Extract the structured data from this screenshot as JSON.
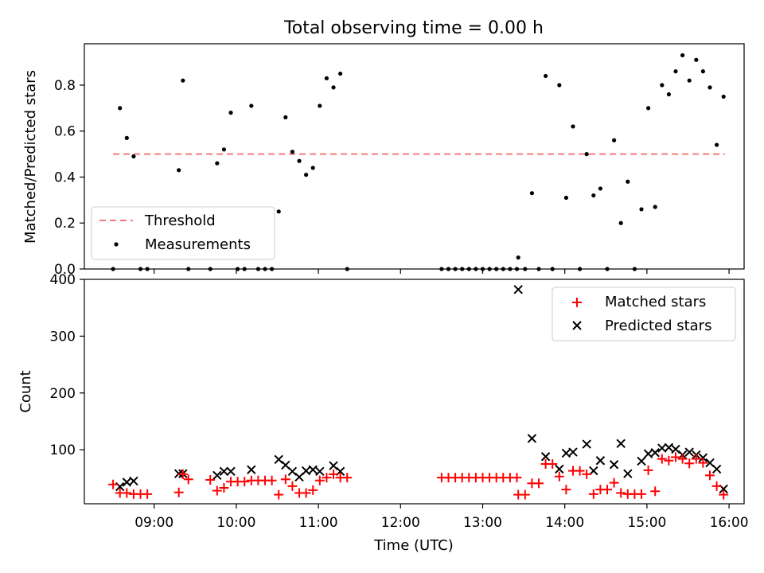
{
  "figure": {
    "title": "Total observing time = 0.00 h"
  },
  "chart_data": [
    {
      "type": "scatter",
      "ylabel": "Matched/Predicted stars",
      "ylim": [
        0,
        0.98
      ],
      "yticks": [
        0.0,
        0.2,
        0.4,
        0.6,
        0.8
      ],
      "ytick_labels": [
        "0.0",
        "0.2",
        "0.4",
        "0.6",
        "0.8"
      ],
      "legend": "lower-left",
      "threshold": {
        "name": "Threshold",
        "value": 0.5,
        "x_start": "08:30",
        "x_end": "15:57",
        "color": "#f47a7a"
      },
      "series": [
        {
          "name": "Measurements",
          "color": "#000000",
          "points": [
            [
              "08:30",
              0.0
            ],
            [
              "08:35",
              0.7
            ],
            [
              "08:40",
              0.57
            ],
            [
              "08:45",
              0.49
            ],
            [
              "08:50",
              0.0
            ],
            [
              "08:55",
              0.0
            ],
            [
              "09:18",
              0.43
            ],
            [
              "09:21",
              0.82
            ],
            [
              "09:25",
              0.0
            ],
            [
              "09:41",
              0.0
            ],
            [
              "09:46",
              0.46
            ],
            [
              "09:51",
              0.52
            ],
            [
              "09:56",
              0.68
            ],
            [
              "10:01",
              0.0
            ],
            [
              "10:06",
              0.0
            ],
            [
              "10:11",
              0.71
            ],
            [
              "10:16",
              0.0
            ],
            [
              "10:21",
              0.0
            ],
            [
              "10:26",
              0.0
            ],
            [
              "10:31",
              0.25
            ],
            [
              "10:36",
              0.66
            ],
            [
              "10:41",
              0.51
            ],
            [
              "10:46",
              0.47
            ],
            [
              "10:51",
              0.41
            ],
            [
              "10:56",
              0.44
            ],
            [
              "11:01",
              0.71
            ],
            [
              "11:06",
              0.83
            ],
            [
              "11:11",
              0.79
            ],
            [
              "11:16",
              0.85
            ],
            [
              "11:21",
              0.0
            ],
            [
              "12:30",
              0.0
            ],
            [
              "12:35",
              0.0
            ],
            [
              "12:40",
              0.0
            ],
            [
              "12:45",
              0.0
            ],
            [
              "12:50",
              0.0
            ],
            [
              "12:55",
              0.0
            ],
            [
              "13:00",
              0.0
            ],
            [
              "13:05",
              0.0
            ],
            [
              "13:10",
              0.0
            ],
            [
              "13:15",
              0.0
            ],
            [
              "13:20",
              0.0
            ],
            [
              "13:25",
              0.0
            ],
            [
              "13:26",
              0.05
            ],
            [
              "13:31",
              0.0
            ],
            [
              "13:36",
              0.33
            ],
            [
              "13:41",
              0.0
            ],
            [
              "13:46",
              0.84
            ],
            [
              "13:51",
              0.0
            ],
            [
              "13:56",
              0.8
            ],
            [
              "14:01",
              0.31
            ],
            [
              "14:06",
              0.62
            ],
            [
              "14:11",
              0.0
            ],
            [
              "14:16",
              0.5
            ],
            [
              "14:21",
              0.32
            ],
            [
              "14:26",
              0.35
            ],
            [
              "14:31",
              0.0
            ],
            [
              "14:36",
              0.56
            ],
            [
              "14:41",
              0.2
            ],
            [
              "14:46",
              0.38
            ],
            [
              "14:51",
              0.0
            ],
            [
              "14:56",
              0.26
            ],
            [
              "15:01",
              0.7
            ],
            [
              "15:06",
              0.27
            ],
            [
              "15:11",
              0.8
            ],
            [
              "15:16",
              0.76
            ],
            [
              "15:21",
              0.86
            ],
            [
              "15:26",
              0.93
            ],
            [
              "15:31",
              0.82
            ],
            [
              "15:36",
              0.91
            ],
            [
              "15:41",
              0.86
            ],
            [
              "15:46",
              0.79
            ],
            [
              "15:51",
              0.54
            ],
            [
              "15:56",
              0.75
            ]
          ]
        }
      ]
    },
    {
      "type": "scatter",
      "xlabel": "Time (UTC)",
      "ylabel": "Count",
      "ylim": [
        5,
        400
      ],
      "yticks": [
        100,
        200,
        300,
        400
      ],
      "ytick_labels": [
        "100",
        "200",
        "300",
        "400"
      ],
      "xlim": [
        "08:09",
        "16:11"
      ],
      "xticks": [
        "09:00",
        "10:00",
        "11:00",
        "12:00",
        "13:00",
        "14:00",
        "15:00",
        "16:00"
      ],
      "legend": "upper-right",
      "series": [
        {
          "name": "Matched stars",
          "marker": "plus",
          "color": "#ff0000",
          "points": [
            [
              "08:30",
              39
            ],
            [
              "08:35",
              24
            ],
            [
              "08:40",
              24
            ],
            [
              "08:45",
              22
            ],
            [
              "08:50",
              22
            ],
            [
              "08:55",
              22
            ],
            [
              "09:18",
              25
            ],
            [
              "09:21",
              57
            ],
            [
              "09:25",
              48
            ],
            [
              "09:41",
              47
            ],
            [
              "09:46",
              28
            ],
            [
              "09:51",
              33
            ],
            [
              "09:56",
              44
            ],
            [
              "10:01",
              44
            ],
            [
              "10:06",
              44
            ],
            [
              "10:11",
              46
            ],
            [
              "10:16",
              46
            ],
            [
              "10:21",
              46
            ],
            [
              "10:26",
              46
            ],
            [
              "10:31",
              21
            ],
            [
              "10:36",
              48
            ],
            [
              "10:41",
              36
            ],
            [
              "10:46",
              24
            ],
            [
              "10:51",
              24
            ],
            [
              "10:56",
              29
            ],
            [
              "11:01",
              46
            ],
            [
              "11:06",
              51
            ],
            [
              "11:11",
              57
            ],
            [
              "11:16",
              51
            ],
            [
              "11:21",
              51
            ],
            [
              "12:30",
              51
            ],
            [
              "12:35",
              51
            ],
            [
              "12:40",
              51
            ],
            [
              "12:45",
              51
            ],
            [
              "12:50",
              51
            ],
            [
              "12:55",
              51
            ],
            [
              "13:00",
              51
            ],
            [
              "13:05",
              51
            ],
            [
              "13:10",
              51
            ],
            [
              "13:15",
              51
            ],
            [
              "13:20",
              51
            ],
            [
              "13:25",
              51
            ],
            [
              "13:26",
              21
            ],
            [
              "13:31",
              21
            ],
            [
              "13:36",
              41
            ],
            [
              "13:41",
              41
            ],
            [
              "13:46",
              75
            ],
            [
              "13:51",
              75
            ],
            [
              "13:56",
              53
            ],
            [
              "14:01",
              30
            ],
            [
              "14:06",
              63
            ],
            [
              "14:11",
              63
            ],
            [
              "14:16",
              57
            ],
            [
              "14:21",
              22
            ],
            [
              "14:26",
              30
            ],
            [
              "14:31",
              30
            ],
            [
              "14:36",
              42
            ],
            [
              "14:41",
              24
            ],
            [
              "14:46",
              22
            ],
            [
              "14:51",
              22
            ],
            [
              "14:56",
              22
            ],
            [
              "15:01",
              64
            ],
            [
              "15:06",
              27
            ],
            [
              "15:11",
              84
            ],
            [
              "15:16",
              81
            ],
            [
              "15:21",
              87
            ],
            [
              "15:26",
              84
            ],
            [
              "15:31",
              76
            ],
            [
              "15:36",
              84
            ],
            [
              "15:41",
              77
            ],
            [
              "15:46",
              55
            ],
            [
              "15:51",
              36
            ],
            [
              "15:56",
              21
            ]
          ]
        },
        {
          "name": "Predicted stars",
          "marker": "x",
          "color": "#000000",
          "points": [
            [
              "08:35",
              35
            ],
            [
              "08:40",
              43
            ],
            [
              "08:45",
              45
            ],
            [
              "09:18",
              58
            ],
            [
              "09:21",
              58
            ],
            [
              "09:46",
              55
            ],
            [
              "09:51",
              62
            ],
            [
              "09:56",
              62
            ],
            [
              "10:11",
              65
            ],
            [
              "10:31",
              83
            ],
            [
              "10:36",
              73
            ],
            [
              "10:41",
              62
            ],
            [
              "10:46",
              52
            ],
            [
              "10:51",
              63
            ],
            [
              "10:56",
              65
            ],
            [
              "11:01",
              62
            ],
            [
              "11:11",
              72
            ],
            [
              "11:16",
              62
            ],
            [
              "13:26",
              382
            ],
            [
              "13:36",
              120
            ],
            [
              "13:46",
              88
            ],
            [
              "13:56",
              66
            ],
            [
              "14:01",
              94
            ],
            [
              "14:06",
              96
            ],
            [
              "14:16",
              110
            ],
            [
              "14:21",
              63
            ],
            [
              "14:26",
              81
            ],
            [
              "14:36",
              74
            ],
            [
              "14:41",
              111
            ],
            [
              "14:46",
              58
            ],
            [
              "14:56",
              80
            ],
            [
              "15:01",
              93
            ],
            [
              "15:06",
              95
            ],
            [
              "15:11",
              103
            ],
            [
              "15:16",
              104
            ],
            [
              "15:21",
              101
            ],
            [
              "15:26",
              91
            ],
            [
              "15:31",
              96
            ],
            [
              "15:36",
              91
            ],
            [
              "15:41",
              86
            ],
            [
              "15:46",
              77
            ],
            [
              "15:51",
              66
            ],
            [
              "15:56",
              31
            ]
          ]
        }
      ]
    }
  ]
}
